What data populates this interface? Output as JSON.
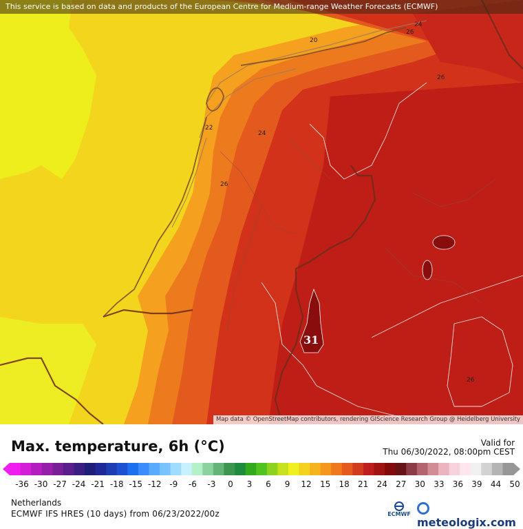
{
  "attribution_top": "This service is based on data and products of the European Centre for Medium-range Weather Forecasts (ECMWF)",
  "attribution_bottom": "Map data © OpenStreetMap contributors, rendering GIScience Research Group @ Heidelberg University",
  "map_max_label": "31",
  "contour_labels": [
    "20",
    "22",
    "24",
    "24",
    "26",
    "26",
    "26",
    "26"
  ],
  "title": "Max. temperature, 6h (°C)",
  "valid_label": "Valid for",
  "valid_date": "Thu 06/30/2022, 08:00pm CEST",
  "region": "Netherlands",
  "model_run": "ECMWF IFS HRES (10 days) from 06/23/2022/00z",
  "ecmwf_logo_text": "ECMWF",
  "brand": "meteologix.com",
  "colorbar": {
    "ticks": [
      "-36",
      "-30",
      "-27",
      "-24",
      "-21",
      "-18",
      "-15",
      "-12",
      "-9",
      "-6",
      "-3",
      "0",
      "3",
      "6",
      "9",
      "12",
      "15",
      "18",
      "21",
      "24",
      "27",
      "30",
      "33",
      "36",
      "39",
      "44",
      "50"
    ],
    "colors": [
      "#f01ef0",
      "#d41ed8",
      "#b41ebe",
      "#961ea8",
      "#781e96",
      "#5a1e8c",
      "#3c1e82",
      "#1e1e78",
      "#1e2896",
      "#1e3cb4",
      "#1e50d2",
      "#1e6ef0",
      "#3c8cff",
      "#5aaaff",
      "#78c3ff",
      "#a0dcff",
      "#c8f0ff",
      "#b4f0c8",
      "#8cd2a0",
      "#64b478",
      "#3c9650",
      "#1e8c3c",
      "#32aa1e",
      "#50c31e",
      "#8cd21e",
      "#c8e11e",
      "#f0f01e",
      "#f5d21e",
      "#f5b41e",
      "#f5961e",
      "#f0781e",
      "#e65a1e",
      "#d23c1e",
      "#be1e1e",
      "#a01414",
      "#820a0a",
      "#641414",
      "#8c3c46",
      "#b4646e",
      "#d28c96",
      "#ebb4be",
      "#f5d2dc",
      "#ffe6ee",
      "#f0f0f0",
      "#d2d2d2",
      "#b4b4b4",
      "#969696"
    ],
    "accent": "#b00000"
  }
}
